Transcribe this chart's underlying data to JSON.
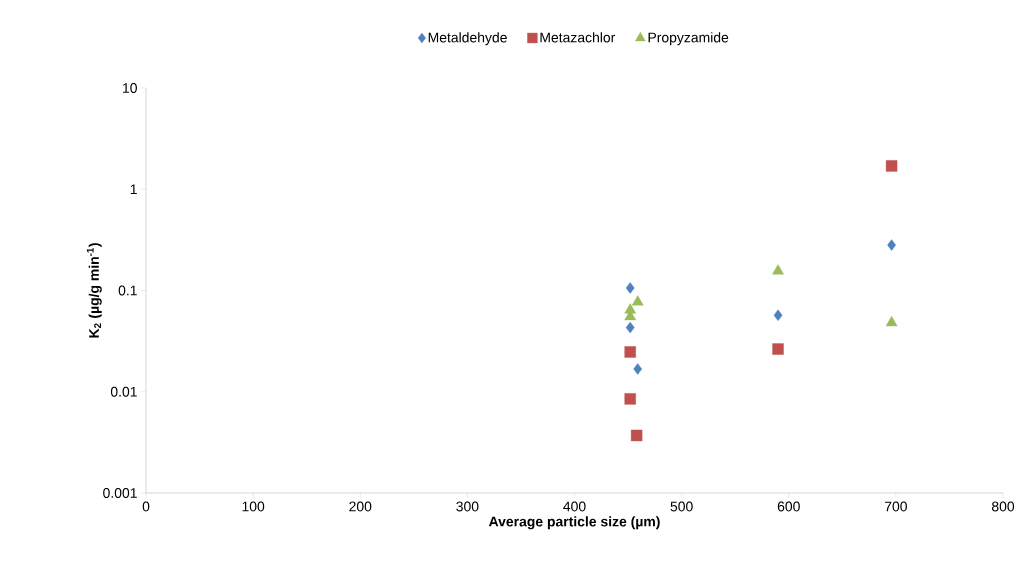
{
  "chart_data": {
    "type": "scatter",
    "xlabel": "**Average particle size (µm)**",
    "ylabel": "**K$_{2}$ (µg/g min$^{-1}$)**",
    "xlim": [
      0,
      800
    ],
    "xticks": [
      0,
      100,
      200,
      300,
      400,
      500,
      600,
      700,
      800
    ],
    "ylim": [
      0.001,
      10
    ],
    "yticks": [
      {
        "value": 0.001,
        "label": "0.001"
      },
      {
        "value": 0.01,
        "label": "0.01"
      },
      {
        "value": 0.1,
        "label": "0.1"
      },
      {
        "value": 1,
        "label": "1"
      },
      {
        "value": 10,
        "label": "10"
      }
    ],
    "log": "y",
    "grid": false,
    "legend": "top",
    "series": [
      {
        "name": "Metaldehyde",
        "color": "#4f81bd",
        "marker": "diamond",
        "x": [
          452,
          452,
          459,
          590,
          696
        ],
        "values": [
          0.106,
          0.043,
          0.0168,
          0.057,
          0.281
        ]
      },
      {
        "name": "Metazachlor",
        "color": "#c0504d",
        "marker": "square",
        "x": [
          452,
          452,
          458,
          590,
          696
        ],
        "values": [
          0.0247,
          0.0085,
          0.0037,
          0.0264,
          1.7
        ]
      },
      {
        "name": "Propyzamide",
        "color": "#9bbb59",
        "marker": "triangle",
        "x": [
          452,
          452,
          459,
          590,
          696
        ],
        "values": [
          0.055,
          0.064,
          0.077,
          0.156,
          0.048
        ]
      }
    ]
  }
}
